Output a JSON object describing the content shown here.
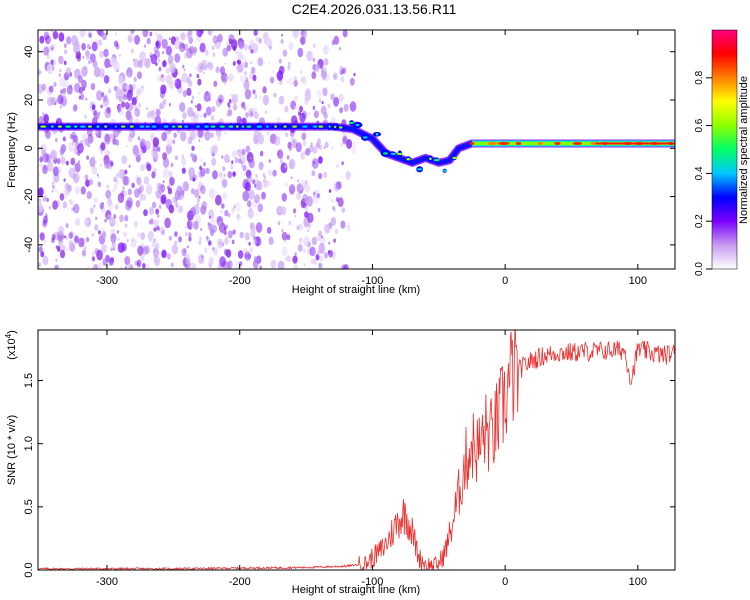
{
  "figure": {
    "title": "C2E4.2026.031.13.56.R11"
  },
  "chart_data": [
    {
      "type": "heatmap",
      "panel": "spectrogram",
      "xlabel": "Height of straight line (km)",
      "ylabel": "Frequency (Hz)",
      "xlim": [
        -352,
        128
      ],
      "ylim": [
        -50,
        49
      ],
      "xticks": [
        -300,
        -200,
        -100,
        0,
        100
      ],
      "yticks": [
        -40,
        -20,
        0,
        20,
        40
      ],
      "colorbar": {
        "label": "Normalized spectral amplitude",
        "range": [
          0,
          1
        ],
        "ticks": [
          "0.0",
          "0.2",
          "0.4",
          "0.6",
          "0.8"
        ],
        "colormap": [
          "#ffffff",
          "#c89cf0",
          "#7a00ff",
          "#0000ff",
          "#00c8ff",
          "#00ff66",
          "#8cff00",
          "#ffff00",
          "#ff8000",
          "#ff0000",
          "#ff0080"
        ]
      },
      "noise_region": {
        "x_range": [
          -352,
          -125
        ],
        "band": [
          -50,
          49
        ]
      },
      "ridge": {
        "x": [
          -352,
          -300,
          -250,
          -200,
          -160,
          -130,
          -115,
          -100,
          -90,
          -80,
          -70,
          -60,
          -50,
          -42,
          -35,
          -25,
          0,
          50,
          100,
          128
        ],
        "frequency": [
          9,
          9,
          9,
          9,
          9,
          9,
          8,
          4,
          -2,
          -4,
          -6,
          -4,
          -6,
          -5,
          0,
          2,
          2,
          2,
          2,
          2
        ]
      }
    },
    {
      "type": "line",
      "panel": "snr",
      "xlabel": "Height of straight line (km)",
      "ylabel": "SNR (10 * v/v)",
      "multiplier_label": "(x10",
      "multiplier_exp": "4",
      "xlim": [
        -352,
        128
      ],
      "ylim": [
        0,
        1.9
      ],
      "xticks": [
        -300,
        -200,
        -100,
        0,
        100
      ],
      "yticks": [
        "0.0",
        "0.5",
        "1.0",
        "1.5"
      ],
      "series": [
        {
          "color": "#e8302e",
          "x": [
            -352,
            -300,
            -250,
            -200,
            -150,
            -120,
            -105,
            -100,
            -95,
            -90,
            -85,
            -80,
            -75,
            -70,
            -65,
            -60,
            -55,
            -50,
            -45,
            -40,
            -35,
            -30,
            -25,
            -20,
            -15,
            -10,
            -5,
            0,
            5,
            10,
            15,
            20,
            25,
            30,
            40,
            50,
            60,
            70,
            80,
            90,
            95,
            100,
            110,
            120,
            128
          ],
          "values": [
            0.01,
            0.01,
            0.01,
            0.015,
            0.02,
            0.03,
            0.05,
            0.1,
            0.14,
            0.2,
            0.3,
            0.4,
            0.45,
            0.3,
            0.1,
            0.05,
            0.03,
            0.05,
            0.15,
            0.35,
            0.6,
            0.85,
            1.0,
            0.95,
            1.1,
            1.05,
            1.2,
            1.35,
            1.55,
            1.58,
            1.62,
            1.66,
            1.68,
            1.7,
            1.72,
            1.72,
            1.73,
            1.73,
            1.74,
            1.74,
            1.5,
            1.75,
            1.72,
            1.7,
            1.72
          ]
        }
      ]
    }
  ]
}
